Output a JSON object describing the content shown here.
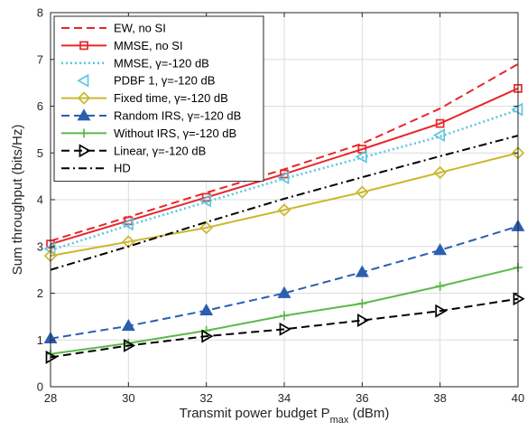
{
  "chart_data": {
    "type": "line",
    "title": "",
    "xlabel_main": "Transmit power budget P",
    "xlabel_sub": "max",
    "xlabel_unit": " (dBm)",
    "ylabel": "Sum throughput (bits/Hz)",
    "xlim": [
      28,
      40
    ],
    "ylim": [
      0,
      8
    ],
    "xticks": [
      28,
      30,
      32,
      34,
      36,
      38,
      40
    ],
    "yticks": [
      0,
      1,
      2,
      3,
      4,
      5,
      6,
      7,
      8
    ],
    "grid": true,
    "legend_position": "top-left",
    "series": [
      {
        "name": "EW, no SI",
        "color": "#e8262a",
        "dash": "dashed",
        "marker": "none",
        "x": [
          28,
          30,
          32,
          34,
          36,
          38,
          40
        ],
        "y": [
          3.12,
          3.63,
          4.15,
          4.65,
          5.2,
          5.95,
          6.9
        ]
      },
      {
        "name": "MMSE, no SI",
        "color": "#e8262a",
        "dash": "solid",
        "marker": "square",
        "x": [
          28,
          30,
          32,
          34,
          36,
          38,
          40
        ],
        "y": [
          3.05,
          3.55,
          4.05,
          4.55,
          5.08,
          5.63,
          6.38
        ]
      },
      {
        "name": "MMSE, γ=-120 dB",
        "color": "#5bc8e0",
        "dash": "dotted",
        "marker": "none",
        "x": [
          28,
          30,
          32,
          34,
          36,
          38,
          40
        ],
        "y": [
          2.92,
          3.45,
          3.95,
          4.45,
          4.9,
          5.35,
          5.92
        ]
      },
      {
        "name": "PDBF 1, γ=-120 dB",
        "color": "#5bc8e0",
        "dash": "none",
        "marker": "triangle-left",
        "x": [
          28,
          30,
          32,
          34,
          36,
          38,
          40
        ],
        "y": [
          2.95,
          3.48,
          3.98,
          4.47,
          4.92,
          5.38,
          5.93
        ]
      },
      {
        "name": "Fixed time, γ=-120 dB",
        "color": "#c9b82e",
        "dash": "solid",
        "marker": "diamond",
        "x": [
          28,
          30,
          32,
          34,
          36,
          38,
          40
        ],
        "y": [
          2.8,
          3.1,
          3.4,
          3.78,
          4.16,
          4.58,
          5.0
        ]
      },
      {
        "name": "Random IRS, γ=-120 dB",
        "color": "#2a5fb0",
        "dash": "dashed",
        "marker": "triangle-up",
        "x": [
          28,
          30,
          32,
          34,
          36,
          38,
          40
        ],
        "y": [
          1.03,
          1.3,
          1.63,
          2.0,
          2.45,
          2.92,
          3.43
        ]
      },
      {
        "name": "Without IRS, γ=-120 dB",
        "color": "#5cb84a",
        "dash": "solid",
        "marker": "plus",
        "x": [
          28,
          30,
          32,
          34,
          36,
          38,
          40
        ],
        "y": [
          0.7,
          0.93,
          1.2,
          1.52,
          1.78,
          2.15,
          2.55
        ]
      },
      {
        "name": "Linear, γ=-120 dB",
        "color": "#000000",
        "dash": "dashed",
        "marker": "triangle-right",
        "x": [
          28,
          30,
          32,
          34,
          36,
          38,
          40
        ],
        "y": [
          0.63,
          0.88,
          1.08,
          1.23,
          1.42,
          1.62,
          1.88
        ]
      },
      {
        "name": "HD",
        "color": "#000000",
        "dash": "dashdot",
        "marker": "none",
        "x": [
          28,
          30,
          32,
          34,
          36,
          38,
          40
        ],
        "y": [
          2.5,
          3.0,
          3.52,
          4.02,
          4.48,
          4.93,
          5.37
        ]
      }
    ]
  }
}
